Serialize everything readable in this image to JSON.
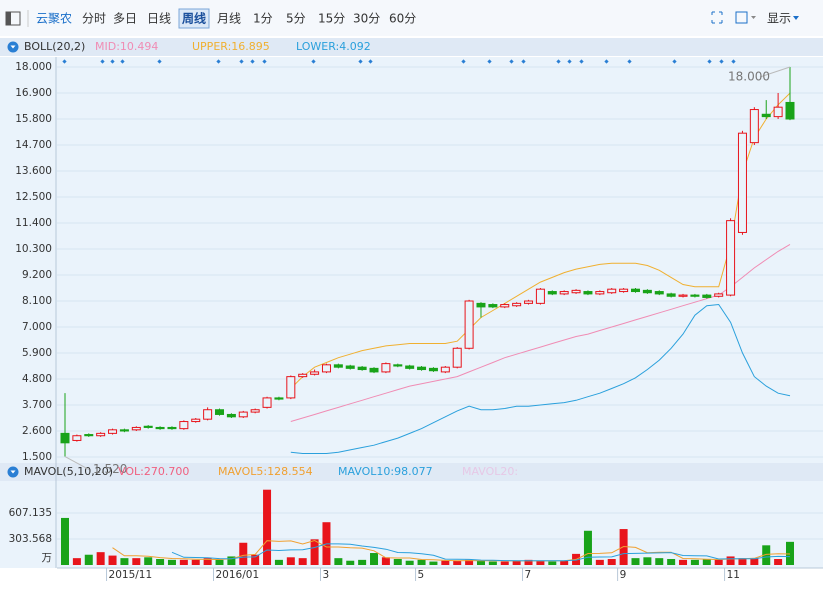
{
  "toolbar": {
    "stock": "云聚农",
    "periods": [
      {
        "label": "分时"
      },
      {
        "label": "多日"
      },
      {
        "label": "日线"
      },
      {
        "label": "周线",
        "active": true
      },
      {
        "label": "月线"
      },
      {
        "label": "1分"
      },
      {
        "label": "5分"
      },
      {
        "label": "15分"
      },
      {
        "label": "30分"
      },
      {
        "label": "60分"
      }
    ],
    "display": "显示"
  },
  "chart_data": [
    {
      "type": "candlestick",
      "title": "BOLL(20,2)",
      "up_color": "#e8141b",
      "down_color": "#19a319",
      "open": [
        2.5,
        2.2,
        2.45,
        2.4,
        2.5,
        2.65,
        2.65,
        2.8,
        2.75,
        2.75,
        2.7,
        3.0,
        3.1,
        3.5,
        3.3,
        3.2,
        3.4,
        3.6,
        4.0,
        4.0,
        4.9,
        5.0,
        5.1,
        5.4,
        5.35,
        5.3,
        5.25,
        5.1,
        5.4,
        5.35,
        5.3,
        5.25,
        5.1,
        5.3,
        6.1,
        8.0,
        7.95,
        7.85,
        7.9,
        8.0,
        8.0,
        8.5,
        8.4,
        8.45,
        8.5,
        8.4,
        8.45,
        8.5,
        8.6,
        8.55,
        8.5,
        8.4,
        8.3,
        8.35,
        8.35,
        8.3,
        8.35,
        11.0,
        14.8,
        16.0,
        15.9,
        16.5
      ],
      "high": [
        4.2,
        2.45,
        2.5,
        2.55,
        2.7,
        2.7,
        2.8,
        2.85,
        2.8,
        2.8,
        3.05,
        3.15,
        3.6,
        3.55,
        3.35,
        3.45,
        3.55,
        4.05,
        4.05,
        4.95,
        5.05,
        5.2,
        5.45,
        5.45,
        5.4,
        5.35,
        5.3,
        5.5,
        5.45,
        5.4,
        5.35,
        5.3,
        5.35,
        6.15,
        8.15,
        8.05,
        8.0,
        8.0,
        8.05,
        8.15,
        8.65,
        8.55,
        8.55,
        8.6,
        8.55,
        8.55,
        8.65,
        8.65,
        8.65,
        8.6,
        8.55,
        8.45,
        8.4,
        8.4,
        8.4,
        8.45,
        11.6,
        15.3,
        16.3,
        16.6,
        16.9,
        18.0
      ],
      "low": [
        1.52,
        2.15,
        2.35,
        2.35,
        2.45,
        2.55,
        2.6,
        2.7,
        2.65,
        2.65,
        2.65,
        2.95,
        3.05,
        3.25,
        3.15,
        3.15,
        3.35,
        3.55,
        3.9,
        3.95,
        4.85,
        4.95,
        5.05,
        5.25,
        5.2,
        5.15,
        5.05,
        5.05,
        5.3,
        5.2,
        5.15,
        5.1,
        5.05,
        5.25,
        6.05,
        7.4,
        7.8,
        7.8,
        7.85,
        7.95,
        7.95,
        8.35,
        8.35,
        8.4,
        8.35,
        8.35,
        8.4,
        8.45,
        8.45,
        8.4,
        8.35,
        8.25,
        8.25,
        8.25,
        8.2,
        8.25,
        8.3,
        10.9,
        14.7,
        15.8,
        15.8,
        15.75
      ],
      "close": [
        2.1,
        2.4,
        2.4,
        2.5,
        2.65,
        2.6,
        2.75,
        2.75,
        2.7,
        2.7,
        3.0,
        3.1,
        3.5,
        3.3,
        3.2,
        3.4,
        3.5,
        4.0,
        3.95,
        4.9,
        5.0,
        5.1,
        5.4,
        5.3,
        5.25,
        5.2,
        5.1,
        5.45,
        5.35,
        5.25,
        5.2,
        5.15,
        5.3,
        6.1,
        8.1,
        7.85,
        7.85,
        7.95,
        8.0,
        8.1,
        8.6,
        8.4,
        8.5,
        8.55,
        8.4,
        8.5,
        8.6,
        8.6,
        8.5,
        8.45,
        8.4,
        8.3,
        8.35,
        8.3,
        8.25,
        8.4,
        11.5,
        15.2,
        16.2,
        15.9,
        16.3,
        15.8
      ],
      "series": [
        {
          "name": "MID:10.494",
          "color": "#f08cb4",
          "values": [
            null,
            null,
            null,
            null,
            null,
            null,
            null,
            null,
            null,
            null,
            null,
            null,
            null,
            null,
            null,
            null,
            null,
            null,
            null,
            3.0,
            3.15,
            3.3,
            3.45,
            3.6,
            3.75,
            3.9,
            4.05,
            4.2,
            4.35,
            4.5,
            4.6,
            4.7,
            4.8,
            4.9,
            5.1,
            5.3,
            5.5,
            5.7,
            5.85,
            6.0,
            6.15,
            6.3,
            6.45,
            6.6,
            6.7,
            6.85,
            7.0,
            7.15,
            7.3,
            7.45,
            7.6,
            7.75,
            7.9,
            8.05,
            8.2,
            8.35,
            8.7,
            9.1,
            9.5,
            9.85,
            10.2,
            10.494
          ]
        },
        {
          "name": "UPPER:16.895",
          "color": "#f0b030",
          "values": [
            null,
            null,
            null,
            null,
            null,
            null,
            null,
            null,
            null,
            null,
            null,
            null,
            null,
            null,
            null,
            null,
            null,
            null,
            null,
            4.4,
            4.9,
            5.3,
            5.5,
            5.7,
            5.85,
            6.0,
            6.1,
            6.2,
            6.25,
            6.3,
            6.3,
            6.3,
            6.3,
            6.4,
            6.9,
            7.4,
            7.7,
            8.0,
            8.3,
            8.6,
            8.9,
            9.1,
            9.3,
            9.45,
            9.55,
            9.65,
            9.7,
            9.7,
            9.7,
            9.6,
            9.4,
            9.1,
            8.8,
            8.7,
            8.7,
            8.7,
            10.5,
            13.5,
            15.0,
            15.8,
            16.4,
            16.895
          ]
        },
        {
          "name": "LOWER:4.092",
          "color": "#2aa0dc",
          "values": [
            null,
            null,
            null,
            null,
            null,
            null,
            null,
            null,
            null,
            null,
            null,
            null,
            null,
            null,
            null,
            null,
            null,
            null,
            null,
            1.7,
            1.65,
            1.65,
            1.65,
            1.7,
            1.8,
            1.9,
            2.0,
            2.15,
            2.3,
            2.5,
            2.7,
            2.95,
            3.2,
            3.45,
            3.65,
            3.5,
            3.5,
            3.55,
            3.65,
            3.65,
            3.7,
            3.75,
            3.8,
            3.9,
            4.05,
            4.2,
            4.4,
            4.6,
            4.85,
            5.2,
            5.6,
            6.1,
            6.7,
            7.5,
            7.9,
            7.95,
            7.2,
            5.9,
            4.9,
            4.5,
            4.2,
            4.092
          ]
        }
      ],
      "annotations": [
        {
          "text": "18.000",
          "value": 18.0,
          "index": 61
        },
        {
          "text": "1.520",
          "value": 1.52,
          "index": 0
        }
      ],
      "ylim": [
        1.5,
        18.0
      ],
      "yticks": [
        {
          "value": 18.0,
          "label": "18.000"
        },
        {
          "value": 16.9,
          "label": "16.900"
        },
        {
          "value": 15.8,
          "label": "15.800"
        },
        {
          "value": 14.7,
          "label": "14.700"
        },
        {
          "value": 13.6,
          "label": "13.600"
        },
        {
          "value": 12.5,
          "label": "12.500"
        },
        {
          "value": 11.4,
          "label": "11.400"
        },
        {
          "value": 10.3,
          "label": "10.300"
        },
        {
          "value": 9.2,
          "label": "9.200"
        },
        {
          "value": 8.1,
          "label": "8.100"
        },
        {
          "value": 7.0,
          "label": "7.000"
        },
        {
          "value": 5.9,
          "label": "5.900"
        },
        {
          "value": 4.8,
          "label": "4.800"
        },
        {
          "value": 3.7,
          "label": "3.700"
        },
        {
          "value": 2.6,
          "label": "2.600"
        },
        {
          "value": 1.5,
          "label": "1.500"
        }
      ],
      "grid": true
    },
    {
      "type": "bar",
      "title": "MAVOL(5,10,20)",
      "categories": [
        null,
        null,
        null,
        null,
        "2015/11",
        null,
        null,
        null,
        null,
        null,
        null,
        null,
        null,
        "2016/01",
        null,
        null,
        null,
        null,
        null,
        null,
        null,
        null,
        "3",
        null,
        null,
        null,
        null,
        null,
        null,
        null,
        "5",
        null,
        null,
        null,
        null,
        null,
        null,
        null,
        null,
        "7",
        null,
        null,
        null,
        null,
        null,
        null,
        null,
        "9",
        null,
        null,
        null,
        null,
        null,
        null,
        null,
        null,
        "11",
        null,
        null,
        null,
        null,
        null
      ],
      "series": [
        {
          "name": "VOL:270.700",
          "color": "#f06080",
          "values": [
            550,
            80,
            120,
            150,
            110,
            80,
            80,
            90,
            70,
            60,
            60,
            60,
            80,
            60,
            100,
            260,
            120,
            880,
            60,
            90,
            80,
            300,
            500,
            80,
            50,
            60,
            140,
            90,
            70,
            50,
            60,
            40,
            50,
            50,
            60,
            50,
            40,
            40,
            50,
            60,
            50,
            40,
            50,
            130,
            400,
            60,
            70,
            420,
            80,
            90,
            80,
            70,
            60,
            60,
            70,
            60,
            100,
            80,
            80,
            230,
            70,
            270.7
          ]
        },
        {
          "name": "MAVOL5:128.554",
          "color": "#f0a030",
          "type": "line",
          "values": [
            null,
            null,
            null,
            null,
            202,
            108,
            108,
            102,
            86,
            76,
            72,
            68,
            66,
            64,
            72,
            112,
            124,
            284,
            276,
            282,
            246,
            286,
            210,
            210,
            202,
            198,
            166,
            84,
            82,
            82,
            64,
            62,
            54,
            50,
            52,
            50,
            50,
            48,
            48,
            48,
            48,
            48,
            50,
            66,
            134,
            136,
            142,
            216,
            206,
            144,
            148,
            148,
            76,
            72,
            68,
            64,
            70,
            74,
            78,
            124,
            132,
            128.554
          ]
        },
        {
          "name": "MAVOL10:98.077",
          "color": "#2aa0dc",
          "type": "line",
          "values": [
            null,
            null,
            null,
            null,
            null,
            null,
            null,
            null,
            null,
            149,
            90,
            88,
            84,
            75,
            74,
            92,
            95,
            175,
            170,
            177,
            179,
            205,
            247,
            247,
            242,
            222,
            206,
            185,
            146,
            142,
            131,
            113,
            69,
            67,
            66,
            57,
            56,
            51,
            49,
            50,
            49,
            49,
            49,
            57,
            91,
            93,
            95,
            133,
            136,
            139,
            141,
            145,
            111,
            108,
            106,
            70,
            74,
            73,
            74,
            94,
            101,
            98.077
          ]
        }
      ],
      "inactive_legend": "MAVOL20:",
      "unit": "万",
      "ylim": [
        0,
        970
      ],
      "yticks": [
        303.568,
        607.135
      ],
      "grid": true
    }
  ]
}
